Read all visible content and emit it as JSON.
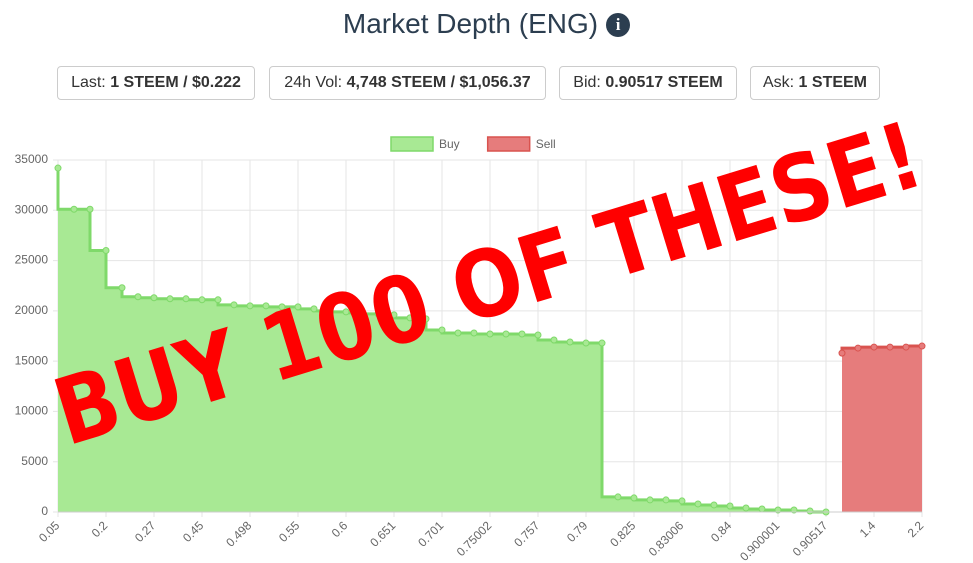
{
  "header": {
    "title": "Market Depth (ENG)"
  },
  "stats": [
    {
      "label": "Last:",
      "value": "1 STEEM / $0.222"
    },
    {
      "label": "24h Vol:",
      "value": "4,748 STEEM / $1,056.37"
    },
    {
      "label": "Bid:",
      "value": "0.90517 STEEM"
    },
    {
      "label": "Ask:",
      "value": "1 STEEM"
    }
  ],
  "chart_data": {
    "type": "area",
    "stepped": true,
    "grid": true,
    "legend": "top",
    "annotation": "BUY 100 OF THESE!",
    "categories": [
      "0.05",
      null,
      null,
      "0.2",
      null,
      null,
      "0.27",
      null,
      null,
      "0.45",
      null,
      null,
      "0.498",
      null,
      null,
      "0.55",
      null,
      null,
      "0.6",
      null,
      null,
      "0.651",
      null,
      null,
      "0.701",
      null,
      null,
      "0.75002",
      null,
      null,
      "0.757",
      null,
      null,
      "0.79",
      null,
      null,
      "0.825",
      null,
      null,
      "0.83006",
      null,
      null,
      "0.84",
      null,
      null,
      "0.900001",
      null,
      null,
      "0.90517",
      null,
      null,
      "1.4",
      null,
      null,
      "2.2"
    ],
    "series": [
      {
        "name": "Buy",
        "color": "#a8e994",
        "values": [
          34200,
          30100,
          30100,
          26000,
          22300,
          21400,
          21300,
          21200,
          21200,
          21100,
          21100,
          20600,
          20500,
          20500,
          20400,
          20400,
          20200,
          20000,
          19900,
          19800,
          19700,
          19600,
          19300,
          19200,
          18100,
          17800,
          17800,
          17700,
          17700,
          17700,
          17600,
          17100,
          16900,
          16800,
          16800,
          1500,
          1400,
          1200,
          1200,
          1100,
          800,
          700,
          600,
          400,
          300,
          200,
          200,
          100,
          0,
          null,
          null,
          null,
          null,
          null,
          null
        ]
      },
      {
        "name": "Sell",
        "color": "#e67c7c",
        "values": [
          null,
          null,
          null,
          null,
          null,
          null,
          null,
          null,
          null,
          null,
          null,
          null,
          null,
          null,
          null,
          null,
          null,
          null,
          null,
          null,
          null,
          null,
          null,
          null,
          null,
          null,
          null,
          null,
          null,
          null,
          null,
          null,
          null,
          null,
          null,
          null,
          null,
          null,
          null,
          null,
          null,
          null,
          null,
          null,
          null,
          null,
          null,
          null,
          null,
          15800,
          16300,
          16400,
          16400,
          16400,
          16500
        ]
      }
    ],
    "ylim": [
      0,
      35000
    ],
    "yticks": [
      0,
      5000,
      10000,
      15000,
      20000,
      25000,
      30000,
      35000
    ]
  }
}
